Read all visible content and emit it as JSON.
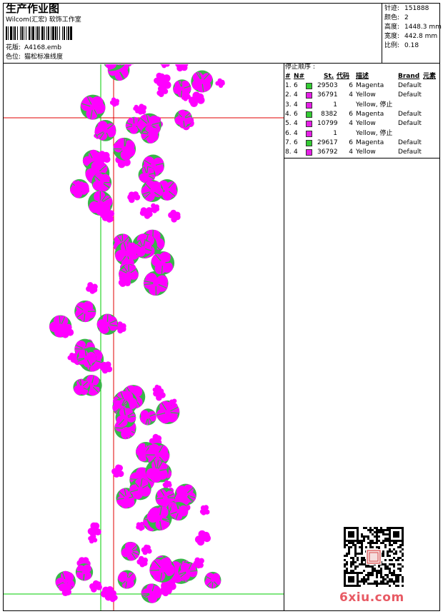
{
  "header": {
    "title": "生产作业图",
    "company": "Wilcom(汇宏) 软饰工作室",
    "design_label": "花版:",
    "design_value": "A4168.emb",
    "color_label": "色位:",
    "color_value": "猫松标准线度"
  },
  "stats": [
    {
      "label": "针迹:",
      "value": "151888"
    },
    {
      "label": "颜色:",
      "value": "2"
    },
    {
      "label": "高度:",
      "value": "1448.3 mm"
    },
    {
      "label": "宽度:",
      "value": "442.8 mm"
    },
    {
      "label": "比例:",
      "value": "0.18"
    }
  ],
  "stop_table": {
    "title": "停止顺序 :",
    "headers": {
      "num": "#",
      "n": "N#",
      "st": "St.",
      "code": "代码",
      "desc": "描述",
      "brand": "Brand",
      "elem": "元素"
    },
    "rows": [
      {
        "num": "1.",
        "n": "6",
        "color": "#33cc33",
        "st": "29503",
        "code": "6",
        "desc": "Magenta",
        "brand": "Default"
      },
      {
        "num": "2.",
        "n": "4",
        "color": "#e61ee6",
        "st": "36791",
        "code": "4",
        "desc": "Yellow",
        "brand": "Default"
      },
      {
        "num": "3.",
        "n": "4",
        "color": "#e61ee6",
        "st": "1",
        "code": "",
        "desc": "Yellow, 停止",
        "brand": ""
      },
      {
        "num": "4.",
        "n": "6",
        "color": "#33cc33",
        "st": "8382",
        "code": "6",
        "desc": "Magenta",
        "brand": "Default"
      },
      {
        "num": "5.",
        "n": "4",
        "color": "#e61ee6",
        "st": "10799",
        "code": "4",
        "desc": "Yellow",
        "brand": "Default"
      },
      {
        "num": "6.",
        "n": "4",
        "color": "#e61ee6",
        "st": "1",
        "code": "",
        "desc": "Yellow, 停止",
        "brand": ""
      },
      {
        "num": "7.",
        "n": "6",
        "color": "#33cc33",
        "st": "29617",
        "code": "6",
        "desc": "Magenta",
        "brand": "Default"
      },
      {
        "num": "8.",
        "n": "4",
        "color": "#e61ee6",
        "st": "36792",
        "code": "4",
        "desc": "Yellow",
        "brand": "Default"
      }
    ]
  },
  "colors": {
    "magenta": "#ff00ff",
    "green": "#3ab54a",
    "red": "#e00000",
    "guide_green": "#00cc00"
  },
  "watermark": "6xiu.com"
}
